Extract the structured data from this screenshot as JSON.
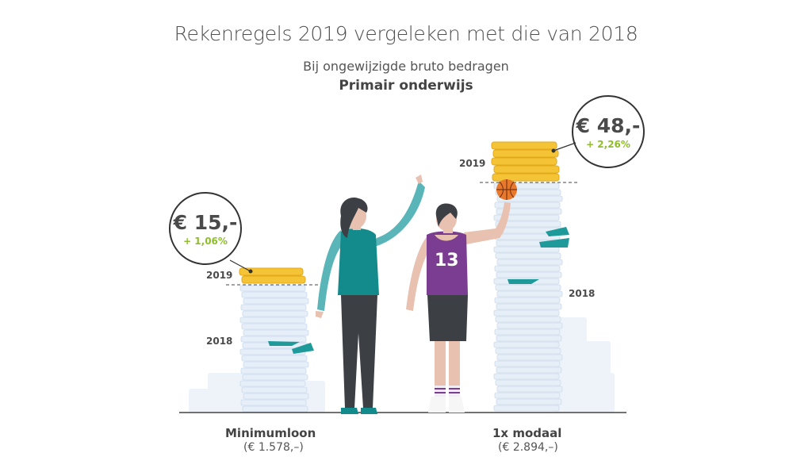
{
  "header": {
    "title": "Rekenregels 2019 vergeleken met die van 2018",
    "subtitle": "Bij ongewijzigde bruto bedragen",
    "sector": "Primair onderwijs"
  },
  "groups": [
    {
      "label": "Minimumloon",
      "income": "(€ 1.578,–)",
      "year_new": "2019",
      "year_old": "2018",
      "difference": "€ 15,-",
      "percent": "+ 1,06%"
    },
    {
      "label": "1x modaal",
      "income": "(€ 2.894,–)",
      "year_new": "2019",
      "year_old": "2018",
      "difference": "€ 48,-",
      "percent": "+ 2,26%"
    }
  ],
  "player_number": "13",
  "colors": {
    "coins": "#f4c436",
    "teal": "#1f9a9a",
    "jersey": "#7a3d91",
    "percent_green": "#8fbe2c",
    "stack": "#dfeaf6"
  }
}
